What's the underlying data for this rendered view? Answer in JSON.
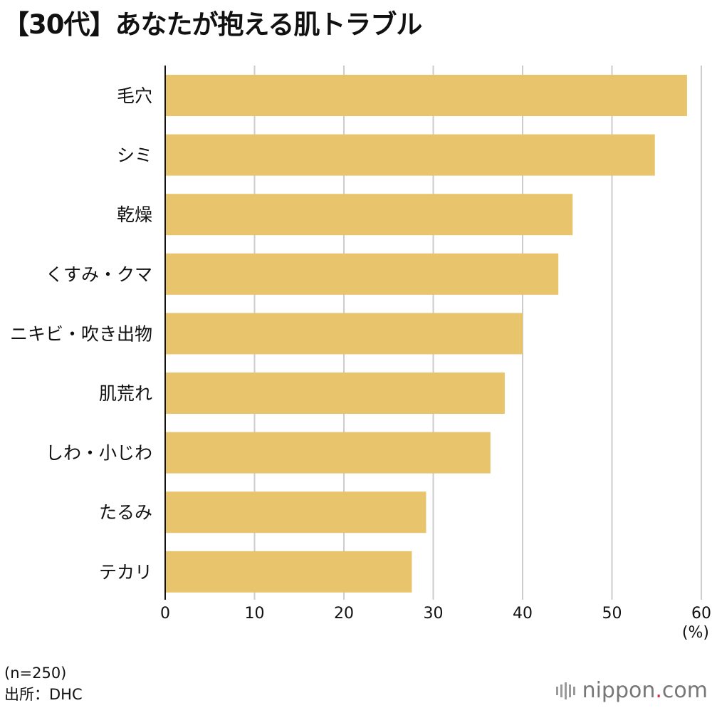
{
  "title": "【30代】あなたが抱える肌トラブル",
  "chart_data": {
    "type": "bar",
    "orientation": "horizontal",
    "categories": [
      "毛穴",
      "シミ",
      "乾燥",
      "くすみ・クマ",
      "ニキビ・吹き出物",
      "肌荒れ",
      "しわ・小じわ",
      "たるみ",
      "テカリ"
    ],
    "values": [
      58.4,
      54.8,
      45.6,
      44.0,
      40.0,
      38.0,
      36.4,
      29.2,
      27.6
    ],
    "xlim": [
      0,
      60
    ],
    "xticks": [
      0,
      10,
      20,
      30,
      40,
      50,
      60
    ],
    "unit": "(%)",
    "grid": true,
    "bar_color": "#e8c46c"
  },
  "note": {
    "sample": "(n=250)",
    "source": "出所：DHC"
  },
  "brand": {
    "name": "nippon",
    "dot": ".",
    "tld": "com"
  },
  "colors": {
    "grid": "#cccccc",
    "axis": "#111111",
    "brand_dot": "#e0283a"
  }
}
